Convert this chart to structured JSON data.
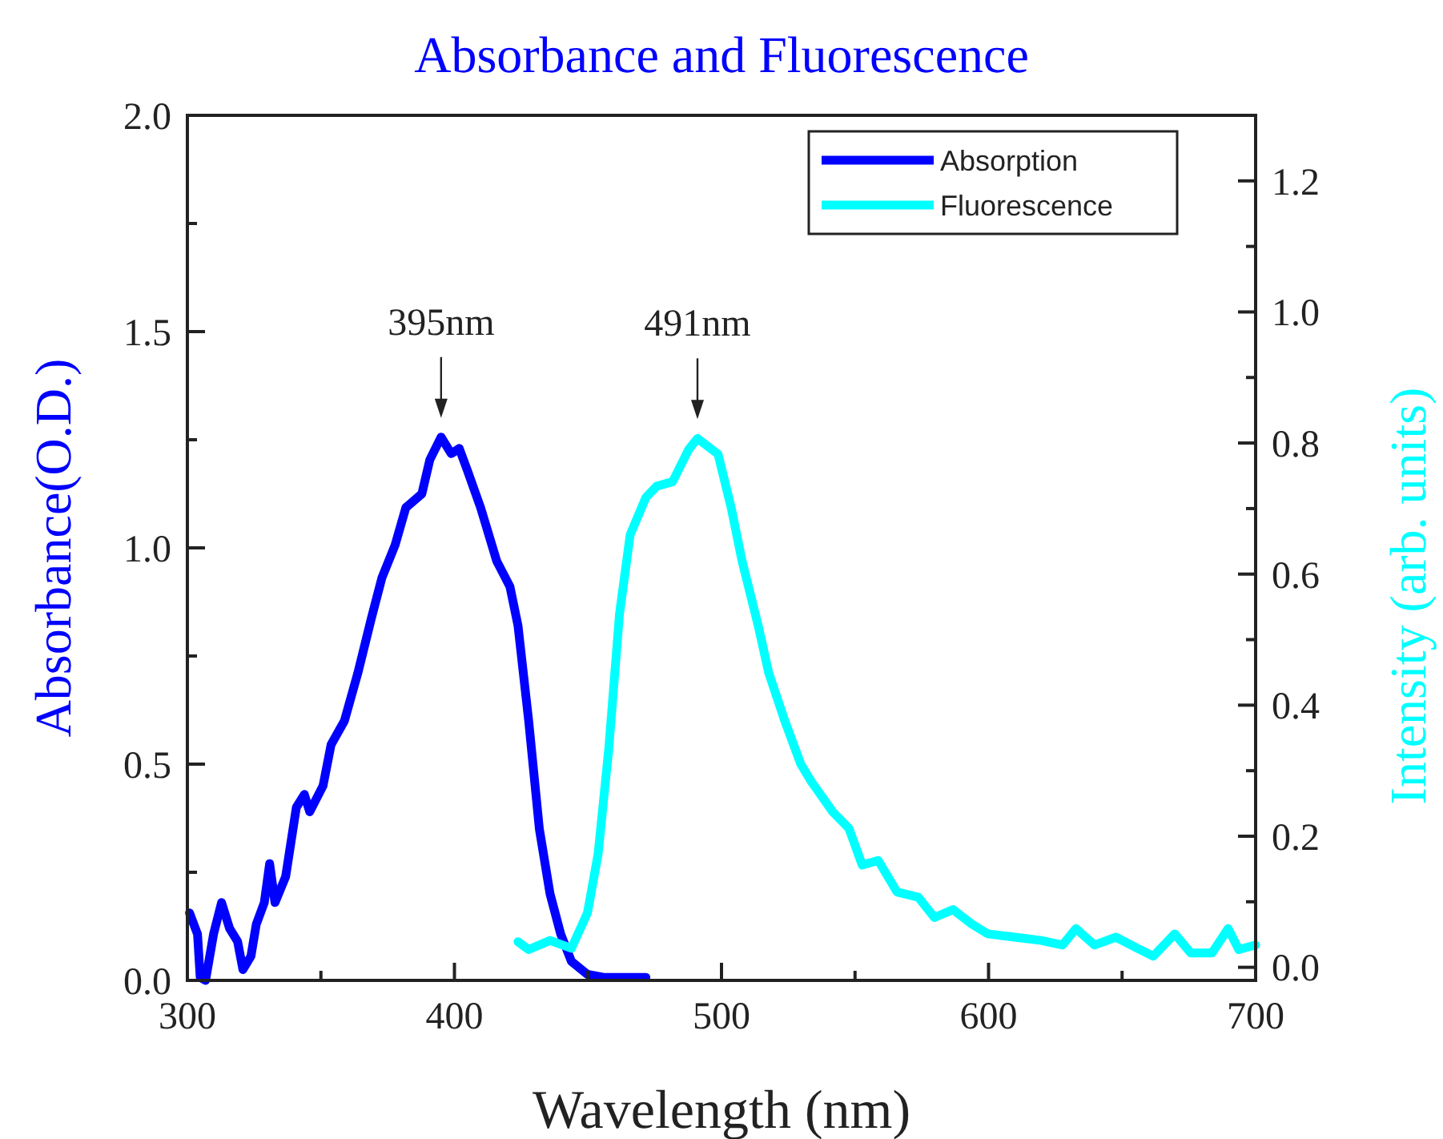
{
  "chart_data": {
    "type": "line",
    "title": "Absorbance and Fluorescence",
    "xlabel": "Wavelength (nm)",
    "ylabel": "Absorbance(O.D.)",
    "y2label": "Intensity (arb. units)",
    "xlim": [
      300,
      700
    ],
    "xticks": [
      300,
      {
        "value": 350,
        "label": null
      },
      400,
      {
        "value": 450,
        "label": null
      },
      500,
      {
        "value": 550,
        "label": null
      },
      600,
      {
        "value": 650,
        "label": null
      },
      700
    ],
    "ylim": [
      0,
      2
    ],
    "yticks": [
      {
        "value": 0,
        "label": "0.0"
      },
      {
        "value": 0.25,
        "label": null
      },
      {
        "value": 0.5,
        "label": "0.5"
      },
      {
        "value": 0.75,
        "label": null
      },
      {
        "value": 1,
        "label": "1.0"
      },
      {
        "value": 1.25,
        "label": null
      },
      {
        "value": 1.5,
        "label": "1.5"
      },
      {
        "value": 1.75,
        "label": null
      },
      {
        "value": 2,
        "label": "2.0"
      }
    ],
    "y2lim": [
      -0.02,
      1.3
    ],
    "y2ticks": [
      {
        "value": 0,
        "label": "0.0"
      },
      {
        "value": 0.1,
        "label": null
      },
      {
        "value": 0.2,
        "label": "0.2"
      },
      {
        "value": 0.3,
        "label": null
      },
      {
        "value": 0.4,
        "label": "0.4"
      },
      {
        "value": 0.5,
        "label": null
      },
      {
        "value": 0.6,
        "label": "0.6"
      },
      {
        "value": 0.7,
        "label": null
      },
      {
        "value": 0.8,
        "label": "0.8"
      },
      {
        "value": 0.9,
        "label": null
      },
      {
        "value": 1,
        "label": "1.0"
      },
      {
        "value": 1.1,
        "label": null
      },
      {
        "value": 1.2,
        "label": "1.2"
      }
    ],
    "grid": false,
    "legend": "top right",
    "marker": "none",
    "line_style": "solid",
    "series": [
      {
        "name": "Absorption",
        "color": "#0000ff",
        "x": [
          300.8,
          303.8,
          304.8,
          306.8,
          309.8,
          312.8,
          315.8,
          318.8,
          320.8,
          323.8,
          325.8,
          328.8,
          330.8,
          332.8,
          336.8,
          340.8,
          343.8,
          345.8,
          350.8,
          353.8,
          358.8,
          363.8,
          368.8,
          372.8,
          377.8,
          381.8,
          387.8,
          390.8,
          395,
          398.8,
          401.8,
          404.8,
          409.8,
          415.8,
          420.8,
          423.8,
          427.8,
          431.8,
          435.8,
          439.8,
          443.8,
          449.8,
          455.8,
          471.7
        ],
        "values": [
          0.156,
          0.107,
          0.007,
          0.0,
          0.107,
          0.18,
          0.12,
          0.09,
          0.025,
          0.056,
          0.13,
          0.18,
          0.27,
          0.18,
          0.24,
          0.4,
          0.43,
          0.39,
          0.45,
          0.545,
          0.6,
          0.71,
          0.835,
          0.93,
          1.007,
          1.093,
          1.125,
          1.204,
          1.256,
          1.218,
          1.23,
          1.18,
          1.093,
          0.97,
          0.91,
          0.82,
          0.6,
          0.35,
          0.2,
          0.107,
          0.044,
          0.014,
          0.007,
          0.007
        ]
      },
      {
        "name": "Fluorescence",
        "color": "#00ffff",
        "axis": "y2",
        "x": [
          423.8,
          427.8,
          435.8,
          443.8,
          449.8,
          453.8,
          457.8,
          461.8,
          465.8,
          471.7,
          475.7,
          481.7,
          487.7,
          491,
          498.7,
          503.7,
          507.7,
          513.7,
          517.7,
          523.7,
          529.7,
          533.7,
          541.7,
          547.7,
          552.7,
          558.7,
          565.7,
          573.7,
          579.7,
          586.7,
          593.7,
          599.7,
          609.7,
          619.7,
          627.7,
          632.7,
          639.7,
          647.7,
          655.7,
          661.7,
          669.7,
          675.7,
          683.7,
          689.7,
          693.7,
          700
        ],
        "values": [
          0.039,
          0.027,
          0.041,
          0.029,
          0.083,
          0.173,
          0.334,
          0.539,
          0.66,
          0.717,
          0.734,
          0.741,
          0.79,
          0.807,
          0.783,
          0.7,
          0.62,
          0.522,
          0.449,
          0.376,
          0.31,
          0.283,
          0.237,
          0.212,
          0.156,
          0.163,
          0.115,
          0.107,
          0.076,
          0.088,
          0.066,
          0.051,
          0.046,
          0.041,
          0.034,
          0.059,
          0.034,
          0.046,
          0.029,
          0.017,
          0.051,
          0.022,
          0.022,
          0.059,
          0.027,
          0.034
        ]
      }
    ],
    "annotations": [
      {
        "text": "395nm",
        "x": 395,
        "y": 1.256
      },
      "491nm"
    ]
  }
}
